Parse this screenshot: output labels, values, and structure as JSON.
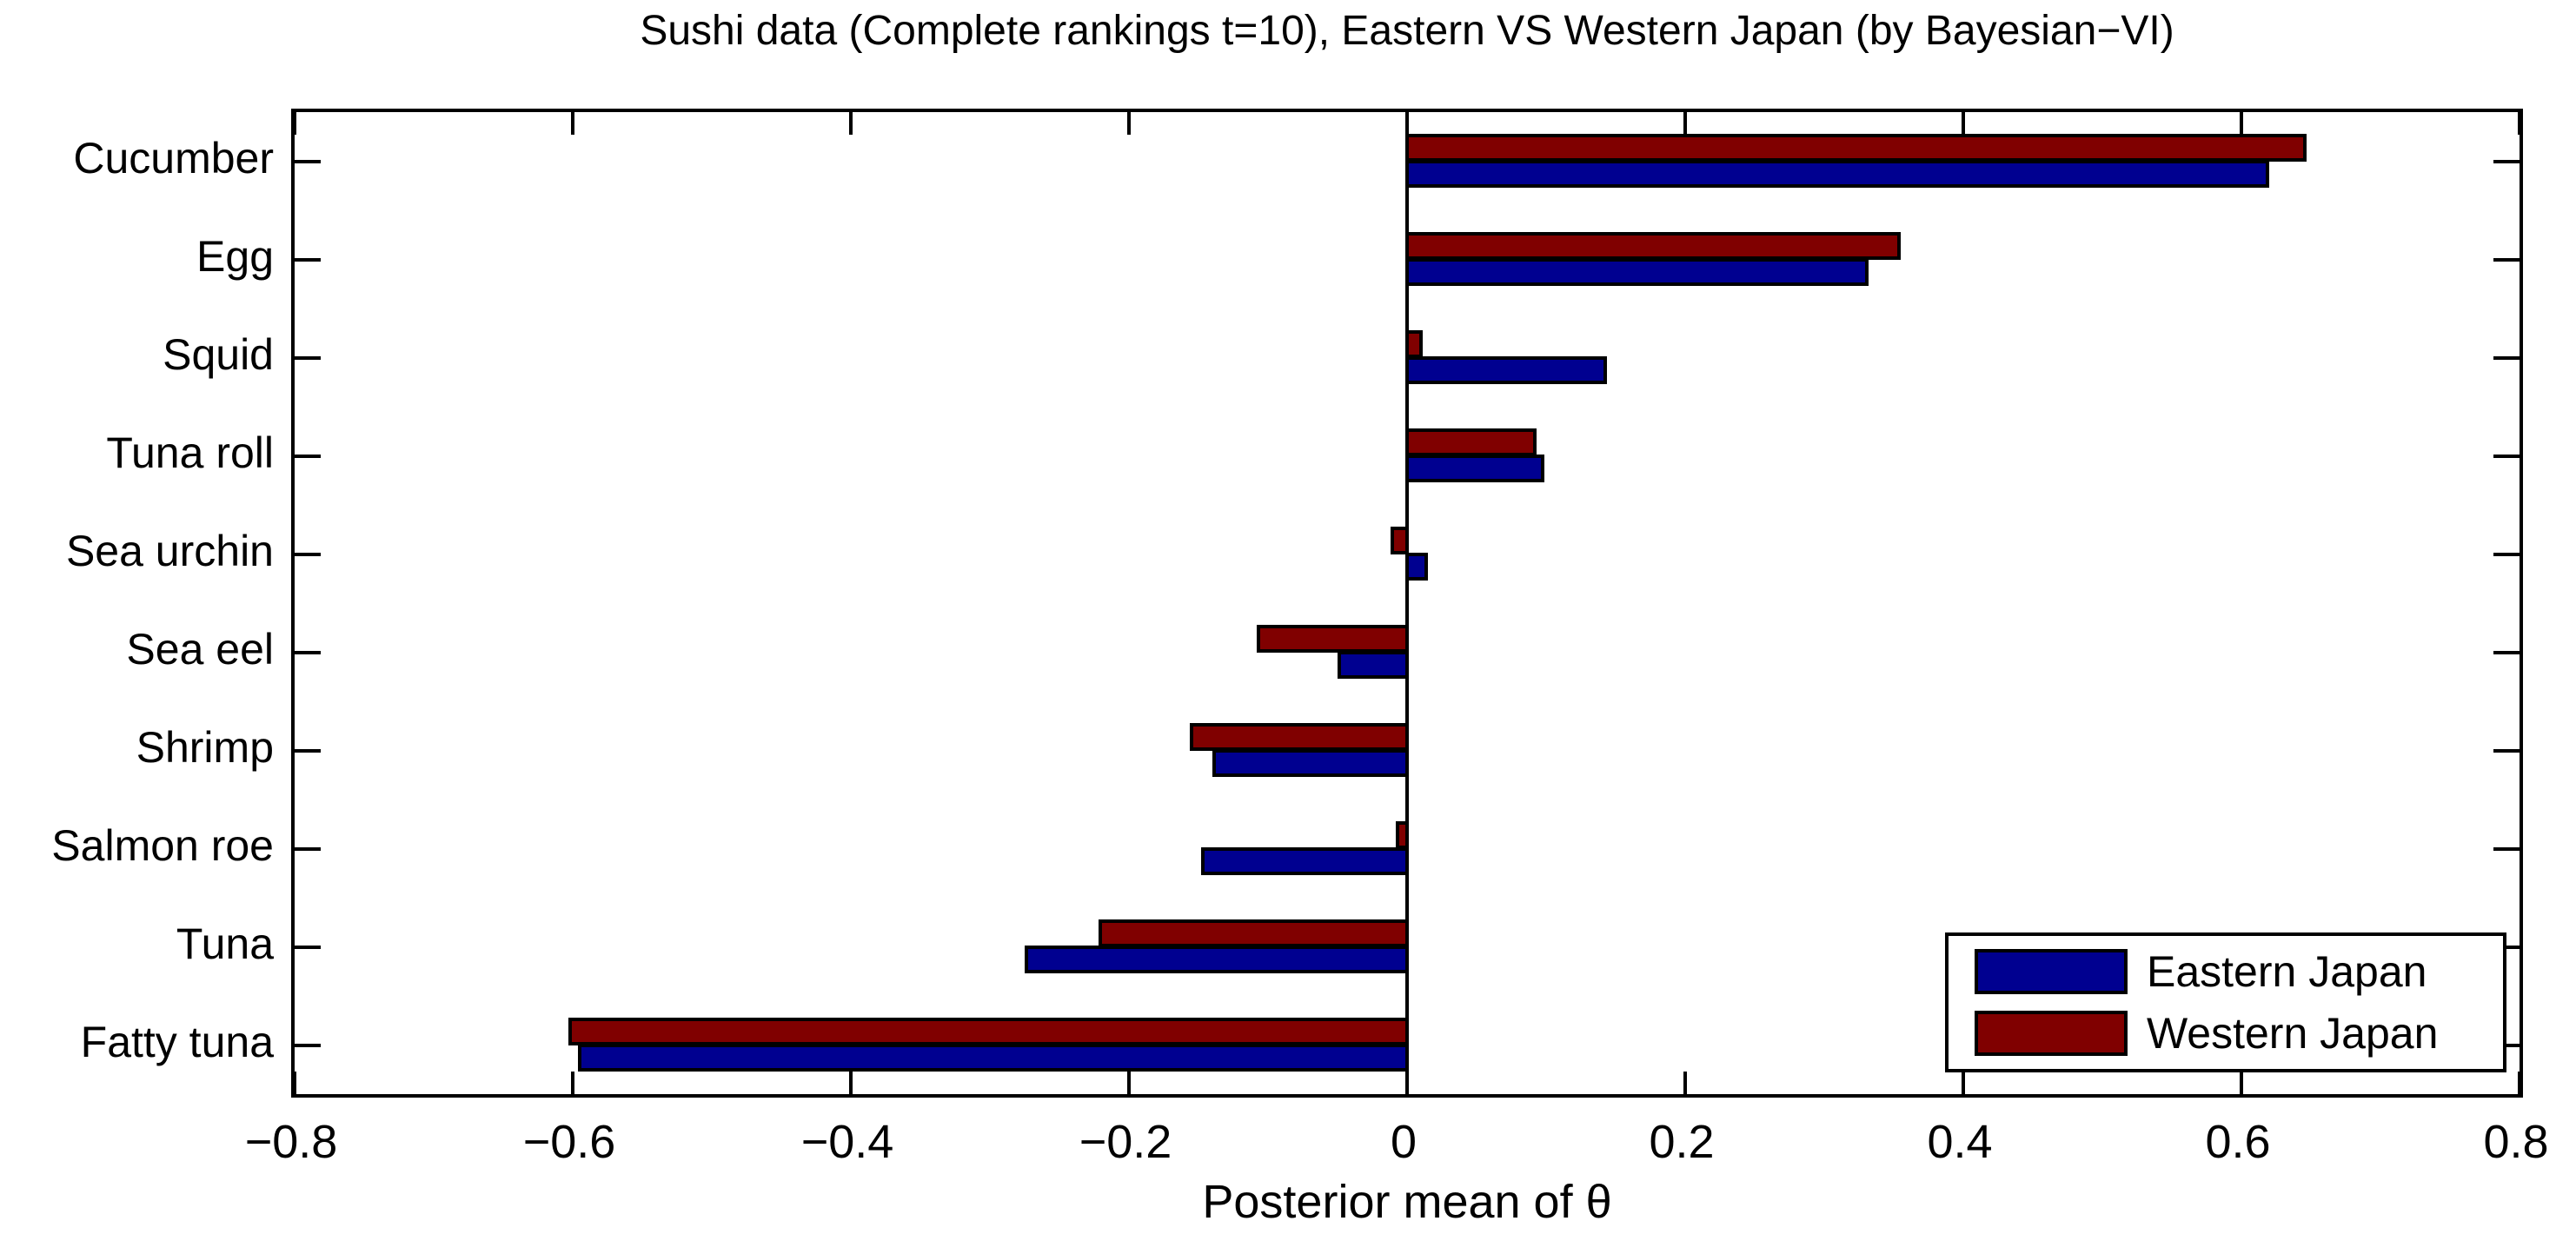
{
  "title": "Sushi data (Complete rankings t=10), Eastern VS Western Japan (by Bayesian−VI)",
  "xlabel": "Posterior mean of θ",
  "legend": {
    "position": "lower-right",
    "items": [
      {
        "label": "Eastern Japan",
        "color": "#000090"
      },
      {
        "label": "Western Japan",
        "color": "#800000"
      }
    ]
  },
  "chart_data": {
    "type": "bar",
    "orientation": "horizontal",
    "title": "Sushi data (Complete rankings t=10), Eastern VS Western Japan (by Bayesian−VI)",
    "xlabel": "Posterior mean of θ",
    "ylabel": "",
    "categories": [
      "Cucumber",
      "Egg",
      "Squid",
      "Tuna roll",
      "Sea urchin",
      "Sea eel",
      "Shrimp",
      "Salmon roe",
      "Tuna",
      "Fatty tuna"
    ],
    "series": [
      {
        "name": "Eastern Japan",
        "color": "#000090",
        "values": [
          0.62,
          0.332,
          0.144,
          0.099,
          0.015,
          -0.05,
          -0.14,
          -0.148,
          -0.275,
          -0.596
        ]
      },
      {
        "name": "Western Japan",
        "color": "#800000",
        "values": [
          0.647,
          0.355,
          0.011,
          0.093,
          -0.012,
          -0.108,
          -0.156,
          -0.008,
          -0.222,
          -0.603
        ]
      }
    ],
    "xlim": [
      -0.8,
      0.8
    ],
    "xticks": [
      -0.8,
      -0.6,
      -0.4,
      -0.2,
      0,
      0.2,
      0.4,
      0.6,
      0.8
    ],
    "xtick_labels": [
      "−0.8",
      "−0.6",
      "−0.4",
      "−0.2",
      "0",
      "0.2",
      "0.4",
      "0.6",
      "0.8"
    ],
    "grid": false,
    "legend_position": "lower right",
    "bar_edge_color": "#000000",
    "zero_baseline": true
  }
}
